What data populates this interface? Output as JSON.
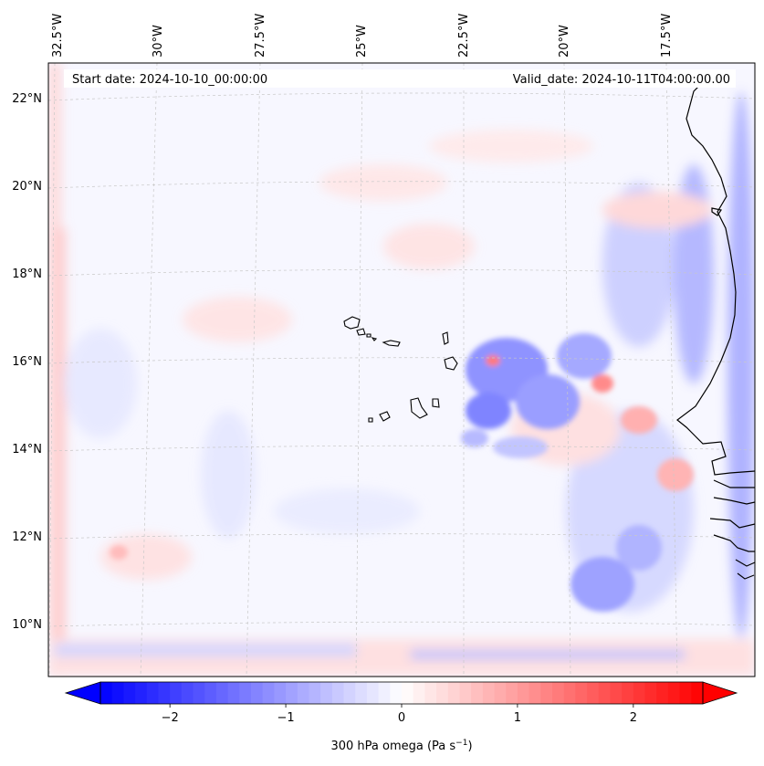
{
  "map": {
    "start_date_label": "Start date: 2024-10-10_00:00:00",
    "valid_date_label": "Valid_date: 2024-10-11T04:00:00.00",
    "lon_labels": [
      "32.5°W",
      "30°W",
      "27.5°W",
      "25°W",
      "22.5°W",
      "20°W",
      "17.5°W"
    ],
    "lat_labels": [
      "22°N",
      "20°N",
      "18°N",
      "16°N",
      "14°N",
      "12°N",
      "10°N"
    ],
    "projection": "Lambert conformal",
    "gridlines": true
  },
  "colorbar": {
    "label_prefix": "300 hPa omega (Pa s",
    "label_exp": "−1",
    "label_suffix": ")",
    "min": -2.6,
    "max": 2.6,
    "ticks": [
      "−2",
      "−1",
      "0",
      "1",
      "2"
    ],
    "tick_values": [
      -2,
      -1,
      0,
      1,
      2
    ],
    "colormap": "bwr",
    "low_color": "#0000ff",
    "mid_color": "#ffffff",
    "high_color": "#ff0000",
    "extend": "both"
  },
  "colors": {
    "coastline": "#000000",
    "gridline": "#bfbfbf",
    "background_field": "#f7f7ff"
  }
}
